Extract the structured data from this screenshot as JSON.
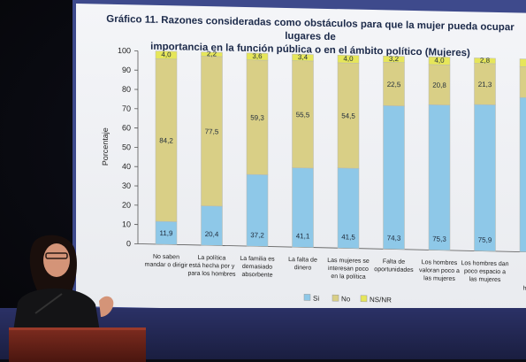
{
  "slide": {
    "title_line1": "Gráfico 11. Razones consideradas como obstáculos para que la mujer pueda ocupar lugares de",
    "title_line2": "importancia en la función pública o en el ámbito político (Mujeres)"
  },
  "colors": {
    "si": "#8ec8e8",
    "no": "#d9cf86",
    "nsnr": "#e6e65a",
    "frame": "#3e4a8c",
    "podium": "#6a2418"
  },
  "chart_data": {
    "type": "bar",
    "stacked": true,
    "title": "Gráfico 11. Razones consideradas como obstáculos para que la mujer pueda ocupar lugares de importancia en la función pública o en el ámbito político (Mujeres)",
    "ylabel": "Porcentaje",
    "xlabel": "",
    "ylim": [
      0,
      100
    ],
    "yticks": [
      0,
      10,
      20,
      30,
      40,
      50,
      60,
      70,
      80,
      90,
      100
    ],
    "legend_position": "bottom",
    "categories": [
      [
        "No saben",
        "mandar o dirigir"
      ],
      [
        "La política",
        "está hecha por y",
        "para los hombres"
      ],
      [
        "La familia es",
        "demasiado",
        "absorbente"
      ],
      [
        "La falta de",
        "dinero"
      ],
      [
        "Las mujeres se",
        "interesan poco",
        "en la política"
      ],
      [
        "Falta de",
        "oportunidades"
      ],
      [
        "Los hombres",
        "valoran poco a",
        "las mujeres"
      ],
      [
        "Los hombres dan",
        "poco espacio a",
        "las mujeres"
      ],
      [
        "M",
        "p",
        "dis",
        "hacia"
      ]
    ],
    "series": [
      {
        "name": "Si",
        "values": [
          11.9,
          20.4,
          37.2,
          41.1,
          41.5,
          74.3,
          75.3,
          75.9,
          80.0
        ],
        "labels": [
          "11,9",
          "20,4",
          "37,2",
          "41,1",
          "41,5",
          "74,3",
          "75,3",
          "75,9",
          ""
        ]
      },
      {
        "name": "No",
        "values": [
          84.2,
          77.5,
          59.3,
          55.5,
          54.5,
          22.5,
          20.8,
          21.3,
          16.0
        ],
        "labels": [
          "84,2",
          "77,5",
          "59,3",
          "55,5",
          "54,5",
          "22,5",
          "20,8",
          "21,3",
          ""
        ]
      },
      {
        "name": "NS/NR",
        "values": [
          4.0,
          2.2,
          3.6,
          3.4,
          4.0,
          3.2,
          4.0,
          2.8,
          4.0
        ],
        "labels": [
          "4,0",
          "2,2",
          "3,6",
          "3,4",
          "4,0",
          "3,2",
          "4,0",
          "2,8",
          ""
        ]
      }
    ]
  }
}
